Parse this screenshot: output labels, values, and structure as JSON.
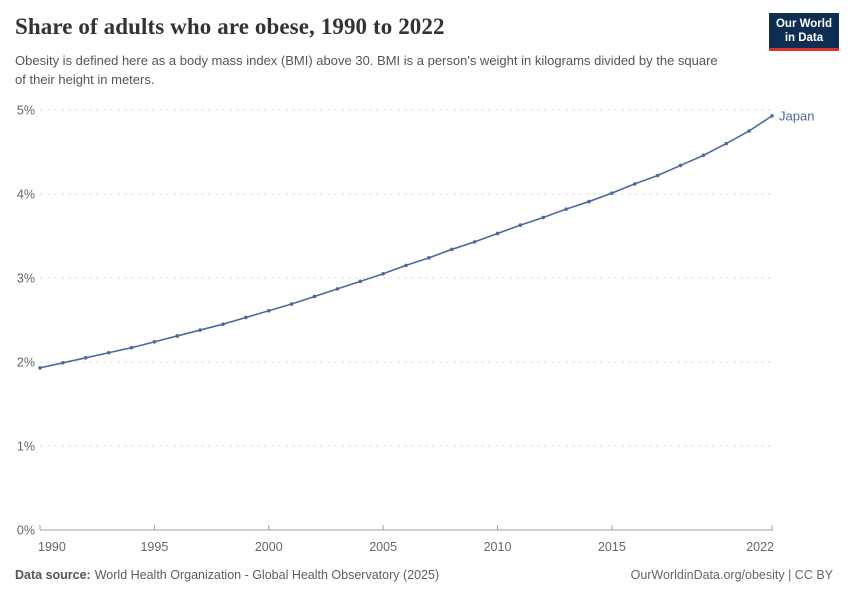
{
  "header": {
    "title": "Share of adults who are obese, 1990 to 2022",
    "subtitle": "Obesity is defined here as a body mass index (BMI) above 30. BMI is a person's weight in kilograms divided by the square of their height in meters.",
    "logo": {
      "line1": "Our World",
      "line2": "in Data",
      "bg_color": "#0d2d51",
      "accent_color": "#d8352f"
    }
  },
  "chart_data": {
    "type": "line",
    "title": "Share of adults who are obese, 1990 to 2022",
    "xlabel": "",
    "ylabel": "",
    "xlim": [
      1990,
      2022
    ],
    "ylim": [
      0,
      5
    ],
    "grid": "horizontal-dashed",
    "legend": "line-end-label",
    "x": [
      1990,
      1991,
      1992,
      1993,
      1994,
      1995,
      1996,
      1997,
      1998,
      1999,
      2000,
      2001,
      2002,
      2003,
      2004,
      2005,
      2006,
      2007,
      2008,
      2009,
      2010,
      2011,
      2012,
      2013,
      2014,
      2015,
      2016,
      2017,
      2018,
      2019,
      2020,
      2021,
      2022
    ],
    "series": [
      {
        "name": "Japan",
        "color": "#4C6A9C",
        "values": [
          1.93,
          1.99,
          2.05,
          2.11,
          2.17,
          2.24,
          2.31,
          2.38,
          2.45,
          2.53,
          2.61,
          2.69,
          2.78,
          2.87,
          2.96,
          3.05,
          3.15,
          3.24,
          3.34,
          3.43,
          3.53,
          3.63,
          3.72,
          3.82,
          3.91,
          4.01,
          4.12,
          4.22,
          4.34,
          4.46,
          4.6,
          4.75,
          4.93
        ]
      }
    ],
    "yticks": [
      {
        "value": 0,
        "label": "0%"
      },
      {
        "value": 1,
        "label": "1%"
      },
      {
        "value": 2,
        "label": "2%"
      },
      {
        "value": 3,
        "label": "3%"
      },
      {
        "value": 4,
        "label": "4%"
      },
      {
        "value": 5,
        "label": "5%"
      }
    ],
    "xticks": [
      {
        "value": 1990,
        "label": "1990"
      },
      {
        "value": 1995,
        "label": "1995"
      },
      {
        "value": 2000,
        "label": "2000"
      },
      {
        "value": 2005,
        "label": "2005"
      },
      {
        "value": 2010,
        "label": "2010"
      },
      {
        "value": 2015,
        "label": "2015"
      },
      {
        "value": 2022,
        "label": "2022"
      }
    ],
    "colors": {
      "grid": "#dddddd",
      "axis": "#a0a0a0",
      "tick_text": "#666666"
    }
  },
  "footer": {
    "datasource_label": "Data source:",
    "datasource_value": "World Health Organization - Global Health Observatory (2025)",
    "right_text": "OurWorldinData.org/obesity | CC BY"
  }
}
